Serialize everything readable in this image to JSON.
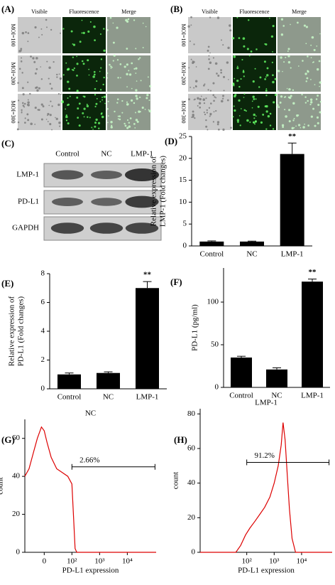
{
  "panels": {
    "A": {
      "label": "(A)",
      "columns": [
        "Visible",
        "Fluorescence",
        "Merge"
      ],
      "rows": [
        "MOI=100",
        "MOI=200",
        "MOI=300"
      ]
    },
    "B": {
      "label": "(B)",
      "columns": [
        "Visible",
        "Fluorescence",
        "Merge"
      ],
      "rows": [
        "MOI=100",
        "MOI=200",
        "MOI=300"
      ]
    },
    "C": {
      "label": "(C)",
      "lanes": [
        "Control",
        "NC",
        "LMP-1"
      ],
      "bands": [
        "LMP-1",
        "PD-L1",
        "GAPDH"
      ]
    }
  },
  "chart_data": [
    {
      "type": "bar",
      "panel": "(D)",
      "ylabel": [
        "Relative expression of",
        "LMP-1 (Fold changes)"
      ],
      "categories": [
        "Control",
        "NC",
        "LMP-1"
      ],
      "values": [
        1,
        1,
        21
      ],
      "errors": [
        0.15,
        0.1,
        2.5
      ],
      "color": "#000000",
      "ylim": [
        0,
        25
      ],
      "yticks": [
        0,
        5,
        10,
        15,
        20,
        25
      ],
      "annotations": [
        {
          "text": "**",
          "x": "LMP-1"
        }
      ]
    },
    {
      "type": "bar",
      "panel": "(E)",
      "ylabel": [
        "Relative expression of",
        "PD-L1 (Fold changes)"
      ],
      "categories": [
        "Control",
        "NC",
        "LMP-1"
      ],
      "values": [
        1,
        1.1,
        7
      ],
      "errors": [
        0.1,
        0.08,
        0.45
      ],
      "color": "#000000",
      "ylim": [
        0,
        8
      ],
      "yticks": [
        0,
        2,
        4,
        6,
        8
      ],
      "annotations": [
        {
          "text": "**",
          "x": "LMP-1"
        }
      ]
    },
    {
      "type": "bar",
      "panel": "(F)",
      "ylabel": [
        "PD-L1 (pg/ml)"
      ],
      "categories": [
        "Control",
        "NC",
        "LMP-1"
      ],
      "values": [
        35,
        21,
        124
      ],
      "errors": [
        1.5,
        2,
        3
      ],
      "color": "#000000",
      "ylim": [
        0,
        140
      ],
      "yticks": [
        0,
        50,
        100
      ],
      "annotations": [
        {
          "text": "**",
          "x": "LMP-1"
        }
      ]
    },
    {
      "type": "line",
      "panel": "(G)",
      "title": "NC",
      "xlabel": "PD-L1 expression",
      "ylabel": [
        "count"
      ],
      "xscale": "symlog",
      "color": "#dd0000",
      "x": [
        -70,
        -55,
        -40,
        -25,
        -10,
        0,
        10,
        25,
        45,
        65,
        85,
        100,
        115,
        130,
        150,
        110000
      ],
      "values": [
        40,
        44,
        52,
        60,
        66,
        64,
        58,
        50,
        44,
        42,
        40,
        36,
        18,
        2,
        0,
        0
      ],
      "xlim": [
        -70,
        110000
      ],
      "ylim": [
        0,
        70
      ],
      "xticks": [
        0,
        {
          "value": 100,
          "label": "10²"
        },
        {
          "value": 1000,
          "label": "10³"
        },
        {
          "value": 10000,
          "label": "10⁴"
        }
      ],
      "yticks": [
        0,
        20,
        40,
        60
      ],
      "gate": [
        100,
        100000
      ],
      "gate_y": 45,
      "gate_label": "2.66%"
    },
    {
      "type": "line",
      "panel": "(H)",
      "title": "LMP-1",
      "xlabel": "PD-L1 expression",
      "ylabel": [
        "count"
      ],
      "xscale": "log",
      "color": "#dd0000",
      "x": [
        2,
        40,
        60,
        90,
        130,
        200,
        300,
        450,
        700,
        1000,
        1400,
        1800,
        2100,
        2500,
        3000,
        3600,
        4500,
        6000,
        130000
      ],
      "values": [
        0,
        0,
        4,
        10,
        14,
        18,
        22,
        26,
        32,
        40,
        50,
        62,
        75,
        65,
        45,
        25,
        8,
        0,
        0
      ],
      "xlim": [
        2,
        130000
      ],
      "ylim": [
        0,
        83
      ],
      "xticks": [
        {
          "value": 100,
          "label": "10²"
        },
        {
          "value": 1000,
          "label": "10³"
        },
        {
          "value": 10000,
          "label": "10⁴"
        }
      ],
      "yticks": [
        0,
        20,
        40,
        60,
        80
      ],
      "gate": [
        100,
        100000
      ],
      "gate_y": 52,
      "gate_label": "91.2%"
    }
  ]
}
